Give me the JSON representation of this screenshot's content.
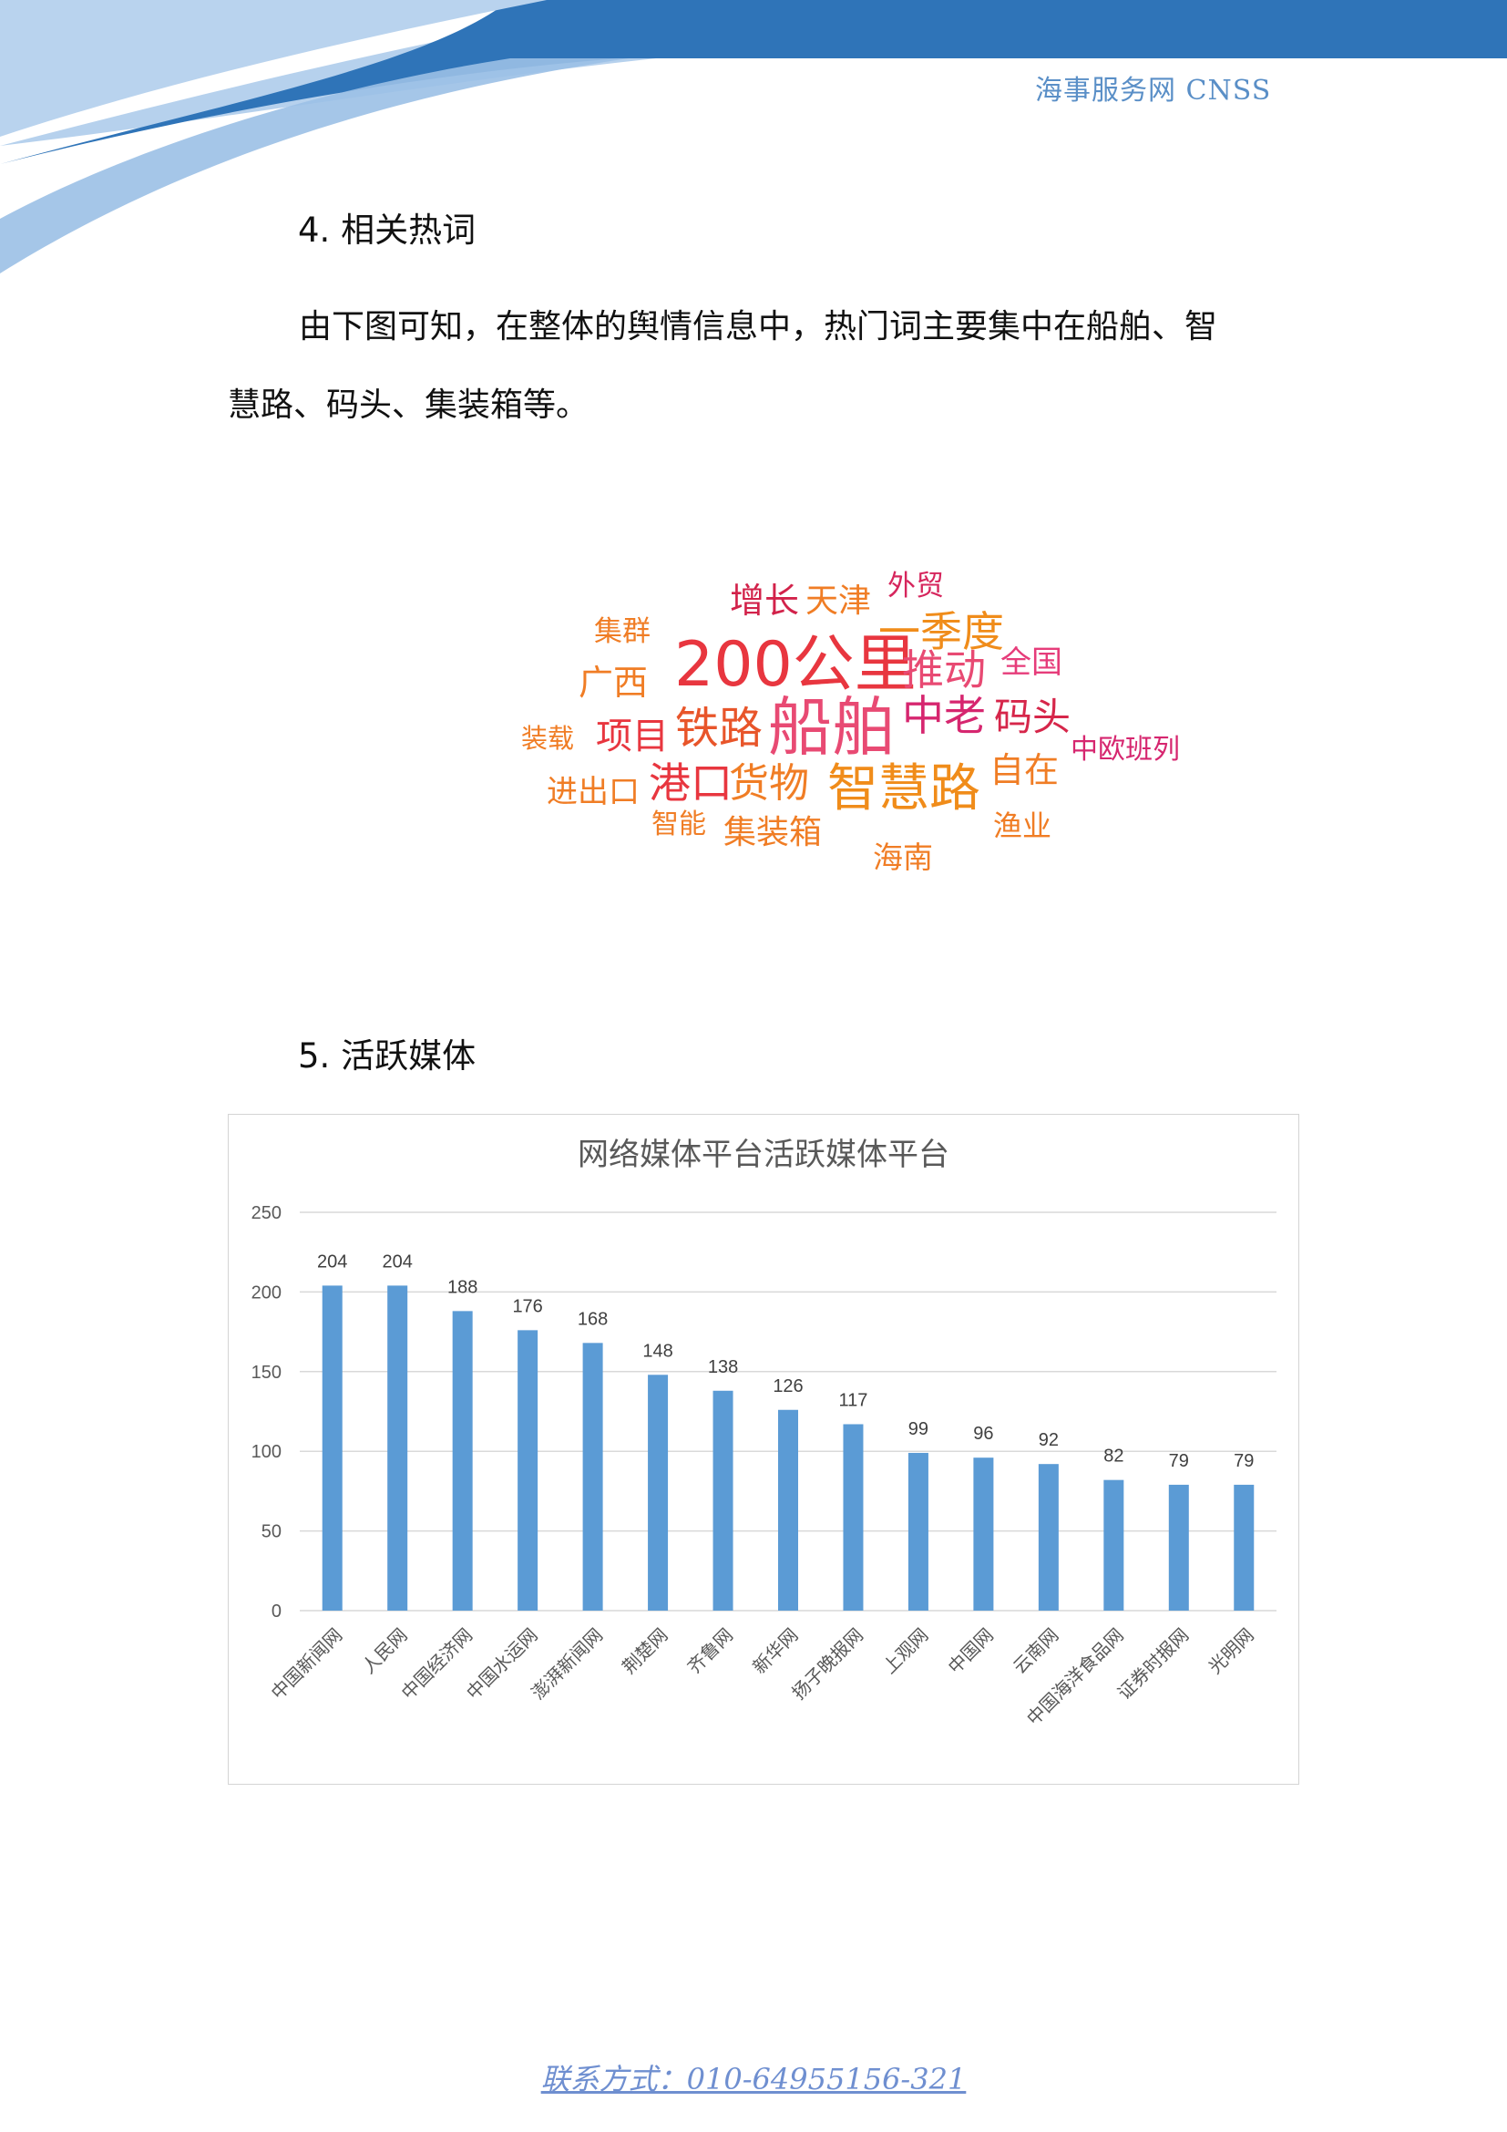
{
  "header": {
    "brand": "海事服务网 CNSS"
  },
  "section4": {
    "heading": "4. 相关热词",
    "paragraph_line1": "由下图可知，在整体的舆情信息中，热门词主要集中在船舶、智",
    "paragraph_line2": "慧路、码头、集装箱等。"
  },
  "word_cloud": [
    {
      "text": "增长",
      "color": "#d2224a"
    },
    {
      "text": "天津",
      "color": "#f07d25"
    },
    {
      "text": "外贸",
      "color": "#d6265d"
    },
    {
      "text": "集群",
      "color": "#f07d25"
    },
    {
      "text": "一季度",
      "color": "#f08c1a"
    },
    {
      "text": "200公里",
      "color": "#e8363f"
    },
    {
      "text": "推动",
      "color": "#e84a73"
    },
    {
      "text": "全国",
      "color": "#e63c7a"
    },
    {
      "text": "广西",
      "color": "#f07d25"
    },
    {
      "text": "装载",
      "color": "#f07d25"
    },
    {
      "text": "项目",
      "color": "#e8363f"
    },
    {
      "text": "铁路",
      "color": "#e8552a"
    },
    {
      "text": "船舶",
      "color": "#e84a73"
    },
    {
      "text": "中老",
      "color": "#d6266f"
    },
    {
      "text": "码头",
      "color": "#d6264a"
    },
    {
      "text": "中欧班列",
      "color": "#d6266f"
    },
    {
      "text": "进出口",
      "color": "#f07d25"
    },
    {
      "text": "港口",
      "color": "#e8363f"
    },
    {
      "text": "货物",
      "color": "#f07d25"
    },
    {
      "text": "智慧路",
      "color": "#f08c1a"
    },
    {
      "text": "自在",
      "color": "#f07d25"
    },
    {
      "text": "智能",
      "color": "#f07d25"
    },
    {
      "text": "集装箱",
      "color": "#f07d25"
    },
    {
      "text": "渔业",
      "color": "#f07d25"
    },
    {
      "text": "海南",
      "color": "#f07d25"
    }
  ],
  "section5": {
    "heading": "5. 活跃媒体"
  },
  "chart_data": {
    "type": "bar",
    "title": "网络媒体平台活跃媒体平台",
    "categories": [
      "中国新闻网",
      "人民网",
      "中国经济网",
      "中国水运网",
      "澎湃新闻网",
      "荆楚网",
      "齐鲁网",
      "新华网",
      "扬子晚报网",
      "上观网",
      "中国网",
      "云南网",
      "中国海洋食品网",
      "证券时报网",
      "光明网"
    ],
    "values": [
      204,
      204,
      188,
      176,
      168,
      148,
      138,
      126,
      117,
      99,
      96,
      92,
      82,
      79,
      79
    ],
    "ylim": [
      0,
      250
    ],
    "yticks": [
      0,
      50,
      100,
      150,
      200,
      250
    ],
    "grid": true,
    "bar_color": "#5b9bd5",
    "data_labels": true
  },
  "footer": {
    "contact": "联系方式：010-64955156-321"
  }
}
